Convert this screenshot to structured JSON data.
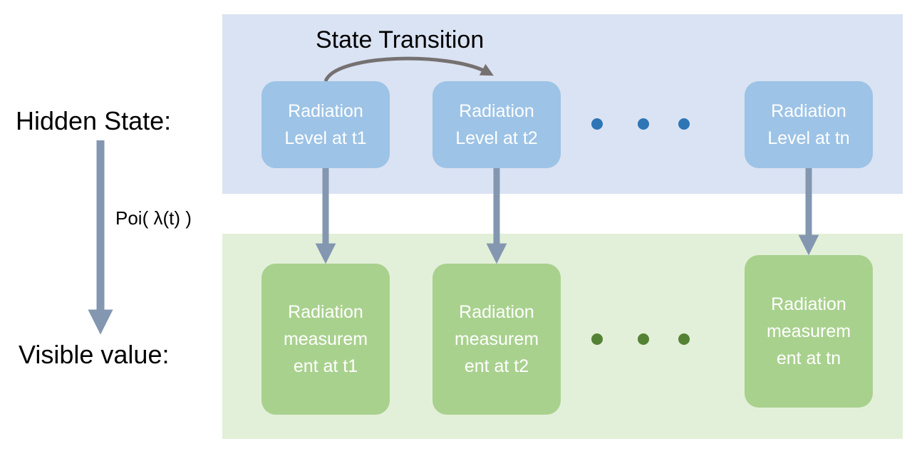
{
  "colors": {
    "hidden_band": "#dae3f3",
    "visible_band": "#e2f0d9",
    "hidden_node": "#9dc3e6",
    "visible_node": "#a9d18e",
    "arrow": "#8497b0",
    "transition_arrow": "#767171",
    "hidden_dot": "#2e75b6",
    "visible_dot": "#548235"
  },
  "labels": {
    "hidden_state": "Hidden State:",
    "visible_value": "Visible value:",
    "emission": "Poi( λ(t) )",
    "transition": "State Transition"
  },
  "hidden_nodes": [
    {
      "text": "Radiation\nLevel at t1"
    },
    {
      "text": "Radiation\nLevel at t2"
    },
    {
      "text": "Radiation\nLevel at tn"
    }
  ],
  "visible_nodes": [
    {
      "text": "Radiation\nmeasurem\nent at t1"
    },
    {
      "text": "Radiation\nmeasurem\nent at t2"
    },
    {
      "text": "Radiation\nmeasurem\nent at tn"
    }
  ]
}
